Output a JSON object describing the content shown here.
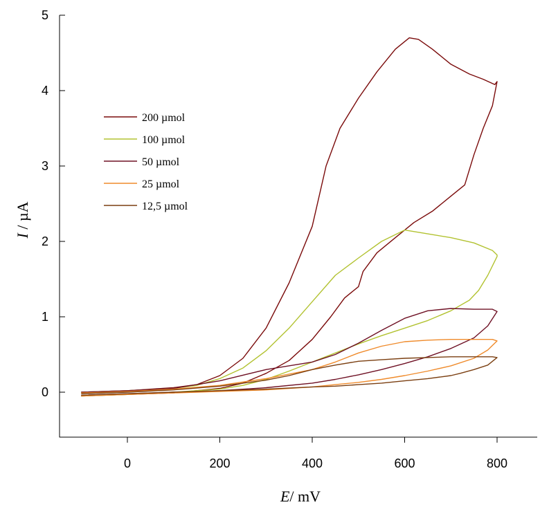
{
  "chart_data": {
    "type": "line",
    "xlabel": {
      "var": "E",
      "unit": "/ mV"
    },
    "ylabel": {
      "var": "I",
      "unit": " / µA"
    },
    "xlim": [
      -150,
      880
    ],
    "ylim": [
      -0.6,
      5
    ],
    "xticks": [
      0,
      200,
      400,
      600,
      800
    ],
    "yticks": [
      0,
      1,
      2,
      3,
      4,
      5
    ],
    "legend_position": "upper-left",
    "grid": false,
    "series": [
      {
        "name": "200 µmol",
        "color": "#7a0a0a",
        "forward": [
          [
            -100,
            0.0
          ],
          [
            0,
            0.02
          ],
          [
            100,
            0.06
          ],
          [
            150,
            0.1
          ],
          [
            200,
            0.22
          ],
          [
            250,
            0.45
          ],
          [
            300,
            0.85
          ],
          [
            350,
            1.45
          ],
          [
            400,
            2.2
          ],
          [
            430,
            3.0
          ],
          [
            460,
            3.5
          ],
          [
            500,
            3.9
          ],
          [
            540,
            4.25
          ],
          [
            580,
            4.55
          ],
          [
            610,
            4.7
          ],
          [
            630,
            4.68
          ],
          [
            660,
            4.55
          ],
          [
            700,
            4.35
          ],
          [
            740,
            4.22
          ],
          [
            770,
            4.15
          ],
          [
            795,
            4.08
          ]
        ],
        "reverse": [
          [
            800,
            4.12
          ],
          [
            790,
            3.8
          ],
          [
            770,
            3.5
          ],
          [
            750,
            3.15
          ],
          [
            730,
            2.75
          ],
          [
            700,
            2.6
          ],
          [
            660,
            2.4
          ],
          [
            620,
            2.25
          ],
          [
            580,
            2.05
          ],
          [
            540,
            1.85
          ],
          [
            510,
            1.6
          ],
          [
            500,
            1.4
          ],
          [
            470,
            1.25
          ],
          [
            440,
            1.0
          ],
          [
            400,
            0.7
          ],
          [
            350,
            0.42
          ],
          [
            300,
            0.25
          ],
          [
            250,
            0.12
          ],
          [
            200,
            0.05
          ],
          [
            100,
            -0.01
          ],
          [
            0,
            -0.03
          ],
          [
            -100,
            -0.05
          ]
        ]
      },
      {
        "name": "100 µmol",
        "color": "#b2c230",
        "forward": [
          [
            -100,
            0.0
          ],
          [
            0,
            0.02
          ],
          [
            100,
            0.05
          ],
          [
            150,
            0.09
          ],
          [
            200,
            0.18
          ],
          [
            250,
            0.32
          ],
          [
            300,
            0.55
          ],
          [
            350,
            0.85
          ],
          [
            400,
            1.2
          ],
          [
            450,
            1.55
          ],
          [
            500,
            1.78
          ],
          [
            550,
            2.0
          ],
          [
            600,
            2.15
          ],
          [
            650,
            2.1
          ],
          [
            700,
            2.05
          ],
          [
            750,
            1.98
          ],
          [
            790,
            1.88
          ],
          [
            800,
            1.82
          ]
        ],
        "reverse": [
          [
            800,
            1.8
          ],
          [
            780,
            1.55
          ],
          [
            760,
            1.35
          ],
          [
            740,
            1.22
          ],
          [
            700,
            1.08
          ],
          [
            650,
            0.95
          ],
          [
            600,
            0.85
          ],
          [
            550,
            0.75
          ],
          [
            500,
            0.64
          ],
          [
            450,
            0.52
          ],
          [
            400,
            0.4
          ],
          [
            350,
            0.28
          ],
          [
            300,
            0.17
          ],
          [
            250,
            0.09
          ],
          [
            200,
            0.04
          ],
          [
            100,
            0.0
          ],
          [
            0,
            -0.03
          ],
          [
            -100,
            -0.05
          ]
        ]
      },
      {
        "name": "50 µmol",
        "color": "#6e1024",
        "forward": [
          [
            -100,
            0.0
          ],
          [
            0,
            0.02
          ],
          [
            100,
            0.05
          ],
          [
            200,
            0.15
          ],
          [
            300,
            0.3
          ],
          [
            400,
            0.4
          ],
          [
            450,
            0.5
          ],
          [
            500,
            0.65
          ],
          [
            550,
            0.82
          ],
          [
            600,
            0.98
          ],
          [
            650,
            1.08
          ],
          [
            700,
            1.11
          ],
          [
            750,
            1.1
          ],
          [
            790,
            1.1
          ],
          [
            800,
            1.07
          ]
        ],
        "reverse": [
          [
            800,
            1.07
          ],
          [
            780,
            0.88
          ],
          [
            750,
            0.72
          ],
          [
            700,
            0.58
          ],
          [
            650,
            0.47
          ],
          [
            600,
            0.38
          ],
          [
            550,
            0.3
          ],
          [
            500,
            0.23
          ],
          [
            450,
            0.17
          ],
          [
            400,
            0.12
          ],
          [
            300,
            0.06
          ],
          [
            200,
            0.02
          ],
          [
            100,
            0.0
          ],
          [
            0,
            -0.02
          ],
          [
            -100,
            -0.04
          ]
        ]
      },
      {
        "name": "25 µmol",
        "color": "#ef8a2a",
        "forward": [
          [
            -100,
            -0.01
          ],
          [
            0,
            0.01
          ],
          [
            100,
            0.04
          ],
          [
            200,
            0.09
          ],
          [
            300,
            0.18
          ],
          [
            400,
            0.3
          ],
          [
            450,
            0.4
          ],
          [
            500,
            0.52
          ],
          [
            550,
            0.61
          ],
          [
            600,
            0.67
          ],
          [
            650,
            0.69
          ],
          [
            700,
            0.7
          ],
          [
            750,
            0.7
          ],
          [
            790,
            0.7
          ],
          [
            800,
            0.68
          ]
        ],
        "reverse": [
          [
            800,
            0.68
          ],
          [
            780,
            0.56
          ],
          [
            750,
            0.45
          ],
          [
            700,
            0.35
          ],
          [
            650,
            0.28
          ],
          [
            600,
            0.22
          ],
          [
            550,
            0.17
          ],
          [
            500,
            0.13
          ],
          [
            450,
            0.1
          ],
          [
            400,
            0.07
          ],
          [
            300,
            0.03
          ],
          [
            200,
            0.01
          ],
          [
            100,
            -0.01
          ],
          [
            0,
            -0.03
          ],
          [
            -100,
            -0.05
          ]
        ]
      },
      {
        "name": "12,5 µmol",
        "color": "#7a3e10",
        "forward": [
          [
            -100,
            -0.02
          ],
          [
            0,
            0.0
          ],
          [
            100,
            0.03
          ],
          [
            200,
            0.08
          ],
          [
            300,
            0.16
          ],
          [
            350,
            0.22
          ],
          [
            400,
            0.3
          ],
          [
            450,
            0.36
          ],
          [
            500,
            0.41
          ],
          [
            550,
            0.43
          ],
          [
            600,
            0.45
          ],
          [
            650,
            0.46
          ],
          [
            700,
            0.47
          ],
          [
            750,
            0.47
          ],
          [
            790,
            0.47
          ],
          [
            800,
            0.46
          ]
        ],
        "reverse": [
          [
            800,
            0.46
          ],
          [
            780,
            0.36
          ],
          [
            750,
            0.3
          ],
          [
            720,
            0.25
          ],
          [
            700,
            0.22
          ],
          [
            650,
            0.18
          ],
          [
            600,
            0.15
          ],
          [
            550,
            0.12
          ],
          [
            500,
            0.1
          ],
          [
            450,
            0.08
          ],
          [
            400,
            0.07
          ],
          [
            300,
            0.04
          ],
          [
            200,
            0.02
          ],
          [
            100,
            0.0
          ],
          [
            0,
            -0.02
          ],
          [
            -100,
            -0.04
          ]
        ]
      }
    ]
  }
}
